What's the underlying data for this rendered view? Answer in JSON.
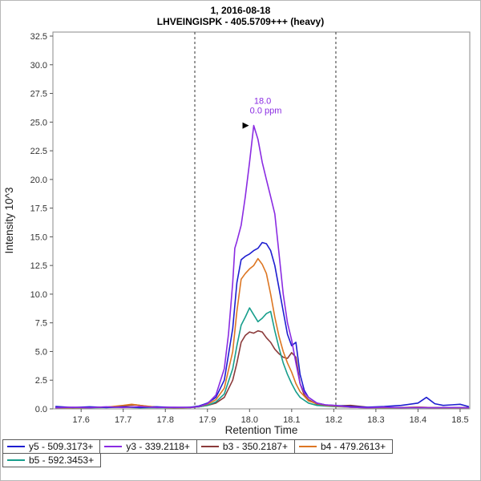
{
  "chart_data": {
    "type": "line",
    "title": "1, 2016-08-18",
    "subtitle": "LHVEINGISPK - 405.5709+++ (heavy)",
    "xlabel": "Retention Time",
    "ylabel": "Intensity 10^3",
    "x_range": [
      17.533,
      18.523
    ],
    "y_range": [
      0,
      32.85
    ],
    "x_ticks": [
      17.6,
      17.7,
      17.8,
      17.9,
      18.0,
      18.1,
      18.2,
      18.3,
      18.4,
      18.5
    ],
    "y_ticks": [
      0.0,
      2.5,
      5.0,
      7.5,
      10.0,
      12.5,
      15.0,
      17.5,
      20.0,
      22.5,
      25.0,
      27.5,
      30.0,
      32.5
    ],
    "grid": false,
    "legend_position": "bottom",
    "integration_boundaries": [
      17.87,
      18.205
    ],
    "annotation": {
      "rt_label": "18.0",
      "ppm_label": "0.0 ppm",
      "x": 18.01,
      "y": 24.7,
      "color": "#8a2be2"
    },
    "legend_rows": [
      [
        0,
        1,
        2,
        3
      ],
      [
        4
      ]
    ],
    "series": [
      {
        "name": "y5 - 509.3173+",
        "color": "#1e1ed0",
        "z": 4,
        "points": [
          [
            17.54,
            0.2
          ],
          [
            17.58,
            0.12
          ],
          [
            17.62,
            0.18
          ],
          [
            17.66,
            0.12
          ],
          [
            17.7,
            0.18
          ],
          [
            17.74,
            0.12
          ],
          [
            17.78,
            0.18
          ],
          [
            17.82,
            0.12
          ],
          [
            17.86,
            0.15
          ],
          [
            17.88,
            0.25
          ],
          [
            17.9,
            0.5
          ],
          [
            17.92,
            1.0
          ],
          [
            17.94,
            2.5
          ],
          [
            17.96,
            7.0
          ],
          [
            17.97,
            11.0
          ],
          [
            17.98,
            13.0
          ],
          [
            17.99,
            13.3
          ],
          [
            18.0,
            13.5
          ],
          [
            18.01,
            13.8
          ],
          [
            18.02,
            14.0
          ],
          [
            18.03,
            14.5
          ],
          [
            18.04,
            14.4
          ],
          [
            18.05,
            13.8
          ],
          [
            18.06,
            12.5
          ],
          [
            18.07,
            10.5
          ],
          [
            18.08,
            8.5
          ],
          [
            18.09,
            6.5
          ],
          [
            18.1,
            5.5
          ],
          [
            18.11,
            5.8
          ],
          [
            18.12,
            3.0
          ],
          [
            18.13,
            1.6
          ],
          [
            18.14,
            1.0
          ],
          [
            18.16,
            0.5
          ],
          [
            18.18,
            0.35
          ],
          [
            18.2,
            0.3
          ],
          [
            18.24,
            0.2
          ],
          [
            18.28,
            0.15
          ],
          [
            18.32,
            0.2
          ],
          [
            18.36,
            0.3
          ],
          [
            18.4,
            0.5
          ],
          [
            18.42,
            1.0
          ],
          [
            18.44,
            0.45
          ],
          [
            18.46,
            0.3
          ],
          [
            18.48,
            0.35
          ],
          [
            18.5,
            0.4
          ],
          [
            18.52,
            0.2
          ]
        ]
      },
      {
        "name": "y3 - 339.2118+",
        "color": "#8a2be2",
        "z": 5,
        "points": [
          [
            17.54,
            0.1
          ],
          [
            17.58,
            0.15
          ],
          [
            17.62,
            0.1
          ],
          [
            17.66,
            0.18
          ],
          [
            17.7,
            0.12
          ],
          [
            17.74,
            0.2
          ],
          [
            17.78,
            0.12
          ],
          [
            17.82,
            0.15
          ],
          [
            17.86,
            0.12
          ],
          [
            17.88,
            0.2
          ],
          [
            17.9,
            0.45
          ],
          [
            17.92,
            1.2
          ],
          [
            17.94,
            3.5
          ],
          [
            17.95,
            6.5
          ],
          [
            17.96,
            11.0
          ],
          [
            17.965,
            14.0
          ],
          [
            17.97,
            14.6
          ],
          [
            17.98,
            16.0
          ],
          [
            17.99,
            18.5
          ],
          [
            18.0,
            21.5
          ],
          [
            18.01,
            24.7
          ],
          [
            18.02,
            23.5
          ],
          [
            18.03,
            21.5
          ],
          [
            18.04,
            20.0
          ],
          [
            18.05,
            18.5
          ],
          [
            18.06,
            17.0
          ],
          [
            18.07,
            13.5
          ],
          [
            18.08,
            10.0
          ],
          [
            18.09,
            7.5
          ],
          [
            18.1,
            6.0
          ],
          [
            18.11,
            4.0
          ],
          [
            18.12,
            2.2
          ],
          [
            18.13,
            1.4
          ],
          [
            18.14,
            1.0
          ],
          [
            18.16,
            0.5
          ],
          [
            18.18,
            0.35
          ],
          [
            18.2,
            0.3
          ],
          [
            18.24,
            0.15
          ],
          [
            18.28,
            0.1
          ],
          [
            18.32,
            0.15
          ],
          [
            18.36,
            0.1
          ],
          [
            18.4,
            0.12
          ],
          [
            18.44,
            0.1
          ],
          [
            18.48,
            0.12
          ],
          [
            18.52,
            0.1
          ]
        ]
      },
      {
        "name": "b3 - 350.2187+",
        "color": "#8b3a3a",
        "z": 1,
        "points": [
          [
            17.54,
            0.1
          ],
          [
            17.58,
            0.1
          ],
          [
            17.62,
            0.12
          ],
          [
            17.66,
            0.15
          ],
          [
            17.7,
            0.25
          ],
          [
            17.73,
            0.35
          ],
          [
            17.76,
            0.2
          ],
          [
            17.8,
            0.12
          ],
          [
            17.84,
            0.1
          ],
          [
            17.88,
            0.18
          ],
          [
            17.9,
            0.3
          ],
          [
            17.92,
            0.5
          ],
          [
            17.94,
            1.0
          ],
          [
            17.96,
            2.5
          ],
          [
            17.97,
            4.0
          ],
          [
            17.98,
            5.8
          ],
          [
            17.99,
            6.4
          ],
          [
            18.0,
            6.7
          ],
          [
            18.01,
            6.6
          ],
          [
            18.02,
            6.8
          ],
          [
            18.03,
            6.7
          ],
          [
            18.04,
            6.2
          ],
          [
            18.05,
            5.8
          ],
          [
            18.06,
            5.2
          ],
          [
            18.07,
            4.8
          ],
          [
            18.08,
            4.5
          ],
          [
            18.09,
            4.4
          ],
          [
            18.1,
            4.9
          ],
          [
            18.11,
            4.5
          ],
          [
            18.12,
            2.2
          ],
          [
            18.13,
            1.2
          ],
          [
            18.14,
            0.8
          ],
          [
            18.16,
            0.4
          ],
          [
            18.18,
            0.3
          ],
          [
            18.2,
            0.25
          ],
          [
            18.24,
            0.3
          ],
          [
            18.28,
            0.15
          ],
          [
            18.32,
            0.1
          ],
          [
            18.36,
            0.12
          ],
          [
            18.4,
            0.15
          ],
          [
            18.44,
            0.1
          ],
          [
            18.48,
            0.12
          ],
          [
            18.52,
            0.1
          ]
        ]
      },
      {
        "name": "b4 - 479.2613+",
        "color": "#dd7622",
        "z": 3,
        "points": [
          [
            17.54,
            0.1
          ],
          [
            17.58,
            0.1
          ],
          [
            17.62,
            0.12
          ],
          [
            17.66,
            0.15
          ],
          [
            17.7,
            0.3
          ],
          [
            17.72,
            0.4
          ],
          [
            17.74,
            0.3
          ],
          [
            17.78,
            0.15
          ],
          [
            17.82,
            0.1
          ],
          [
            17.86,
            0.12
          ],
          [
            17.88,
            0.2
          ],
          [
            17.9,
            0.4
          ],
          [
            17.92,
            0.8
          ],
          [
            17.94,
            1.8
          ],
          [
            17.96,
            5.0
          ],
          [
            17.97,
            8.5
          ],
          [
            17.98,
            11.3
          ],
          [
            17.99,
            11.8
          ],
          [
            18.0,
            12.2
          ],
          [
            18.01,
            12.5
          ],
          [
            18.02,
            13.1
          ],
          [
            18.03,
            12.6
          ],
          [
            18.04,
            11.8
          ],
          [
            18.05,
            10.0
          ],
          [
            18.06,
            8.0
          ],
          [
            18.07,
            6.3
          ],
          [
            18.08,
            5.0
          ],
          [
            18.09,
            4.0
          ],
          [
            18.1,
            3.2
          ],
          [
            18.11,
            2.2
          ],
          [
            18.12,
            1.5
          ],
          [
            18.14,
            0.7
          ],
          [
            18.16,
            0.45
          ],
          [
            18.18,
            0.3
          ],
          [
            18.2,
            0.25
          ],
          [
            18.24,
            0.15
          ],
          [
            18.28,
            0.1
          ],
          [
            18.32,
            0.12
          ],
          [
            18.36,
            0.1
          ],
          [
            18.4,
            0.15
          ],
          [
            18.44,
            0.1
          ],
          [
            18.48,
            0.1
          ],
          [
            18.52,
            0.1
          ]
        ]
      },
      {
        "name": "b5 - 592.3453+",
        "color": "#179e8c",
        "z": 2,
        "points": [
          [
            17.54,
            0.1
          ],
          [
            17.58,
            0.1
          ],
          [
            17.62,
            0.1
          ],
          [
            17.66,
            0.12
          ],
          [
            17.7,
            0.15
          ],
          [
            17.74,
            0.1
          ],
          [
            17.78,
            0.12
          ],
          [
            17.82,
            0.1
          ],
          [
            17.86,
            0.12
          ],
          [
            17.88,
            0.18
          ],
          [
            17.9,
            0.3
          ],
          [
            17.92,
            0.6
          ],
          [
            17.94,
            1.3
          ],
          [
            17.96,
            3.5
          ],
          [
            17.97,
            5.5
          ],
          [
            17.98,
            7.3
          ],
          [
            17.99,
            8.0
          ],
          [
            18.0,
            8.8
          ],
          [
            18.01,
            8.2
          ],
          [
            18.02,
            7.6
          ],
          [
            18.03,
            7.9
          ],
          [
            18.04,
            8.3
          ],
          [
            18.05,
            8.5
          ],
          [
            18.06,
            6.8
          ],
          [
            18.07,
            5.3
          ],
          [
            18.08,
            4.0
          ],
          [
            18.09,
            3.0
          ],
          [
            18.1,
            2.2
          ],
          [
            18.11,
            1.5
          ],
          [
            18.12,
            1.0
          ],
          [
            18.14,
            0.5
          ],
          [
            18.16,
            0.3
          ],
          [
            18.18,
            0.25
          ],
          [
            18.2,
            0.2
          ],
          [
            18.24,
            0.15
          ],
          [
            18.28,
            0.1
          ],
          [
            18.32,
            0.1
          ],
          [
            18.36,
            0.1
          ],
          [
            18.4,
            0.12
          ],
          [
            18.44,
            0.1
          ],
          [
            18.48,
            0.1
          ],
          [
            18.52,
            0.1
          ]
        ]
      }
    ]
  }
}
